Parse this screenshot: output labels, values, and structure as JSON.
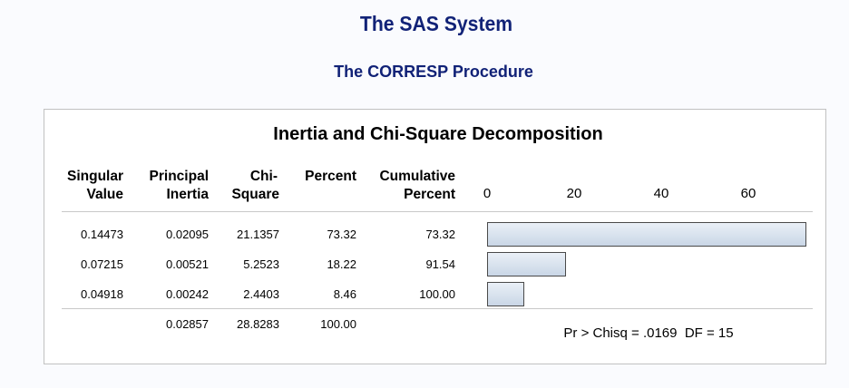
{
  "header": {
    "title": "The SAS System",
    "subtitle": "The CORRESP Procedure"
  },
  "table": {
    "title": "Inertia and Chi-Square Decomposition",
    "columns": [
      {
        "line1": "Singular",
        "line2": "Value"
      },
      {
        "line1": "Principal",
        "line2": "Inertia"
      },
      {
        "line1": "Chi-",
        "line2": "Square"
      },
      {
        "line1": "",
        "line2": "Percent"
      },
      {
        "line1": "Cumulative",
        "line2": "Percent"
      }
    ],
    "rows": [
      {
        "singular_value": "0.14473",
        "principal_inertia": "0.02095",
        "chi_square": "21.1357",
        "percent": "73.32",
        "cumulative_percent": "73.32"
      },
      {
        "singular_value": "0.07215",
        "principal_inertia": "0.00521",
        "chi_square": "5.2523",
        "percent": "18.22",
        "cumulative_percent": "91.54"
      },
      {
        "singular_value": "0.04918",
        "principal_inertia": "0.00242",
        "chi_square": "2.4403",
        "percent": "8.46",
        "cumulative_percent": "100.00"
      }
    ],
    "total": {
      "principal_inertia": "0.02857",
      "chi_square": "28.8283",
      "percent": "100.00"
    },
    "statistic_note": "Pr > Chisq = .0169  DF = 15"
  },
  "chart_data": {
    "type": "bar",
    "orientation": "horizontal",
    "categories": [
      "0.14473",
      "0.07215",
      "0.04918"
    ],
    "values": [
      73.32,
      18.22,
      8.46
    ],
    "xticks": [
      0,
      20,
      40,
      60
    ],
    "xlim": [
      0,
      73.32
    ],
    "title": "",
    "xlabel": "",
    "ylabel": "",
    "bar_fill": "#d3deeb",
    "bar_stroke": "#4a4a4a"
  },
  "colors": {
    "title": "#112277",
    "page_background": "#fafbfe",
    "box_border": "#c1c1c1"
  }
}
